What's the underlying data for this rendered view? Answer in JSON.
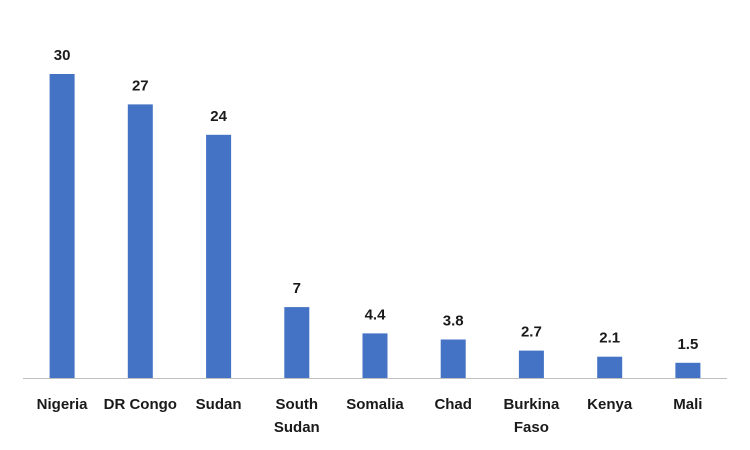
{
  "chart_data": {
    "type": "bar",
    "categories": [
      "Nigeria",
      "DR Congo",
      "Sudan",
      "South Sudan",
      "Somalia",
      "Chad",
      "Burkina Faso",
      "Kenya",
      "Mali"
    ],
    "category_lines": [
      [
        "Nigeria"
      ],
      [
        "DR Congo"
      ],
      [
        "Sudan"
      ],
      [
        "South",
        "Sudan"
      ],
      [
        "Somalia"
      ],
      [
        "Chad"
      ],
      [
        "Burkina",
        "Faso"
      ],
      [
        "Kenya"
      ],
      [
        "Mali"
      ]
    ],
    "values": [
      30,
      27,
      24,
      7,
      4.4,
      3.8,
      2.7,
      2.1,
      1.5
    ],
    "value_labels": [
      "30",
      "27",
      "24",
      "7",
      "4.4",
      "3.8",
      "2.7",
      "2.1",
      "1.5"
    ],
    "title": "",
    "xlabel": "",
    "ylabel": "",
    "ylim": [
      0,
      30
    ],
    "grid": false,
    "legend": "none",
    "colors": {
      "bar": "#4472C4",
      "axis": "#BFBFBF",
      "text": "#1a1a1a"
    }
  }
}
